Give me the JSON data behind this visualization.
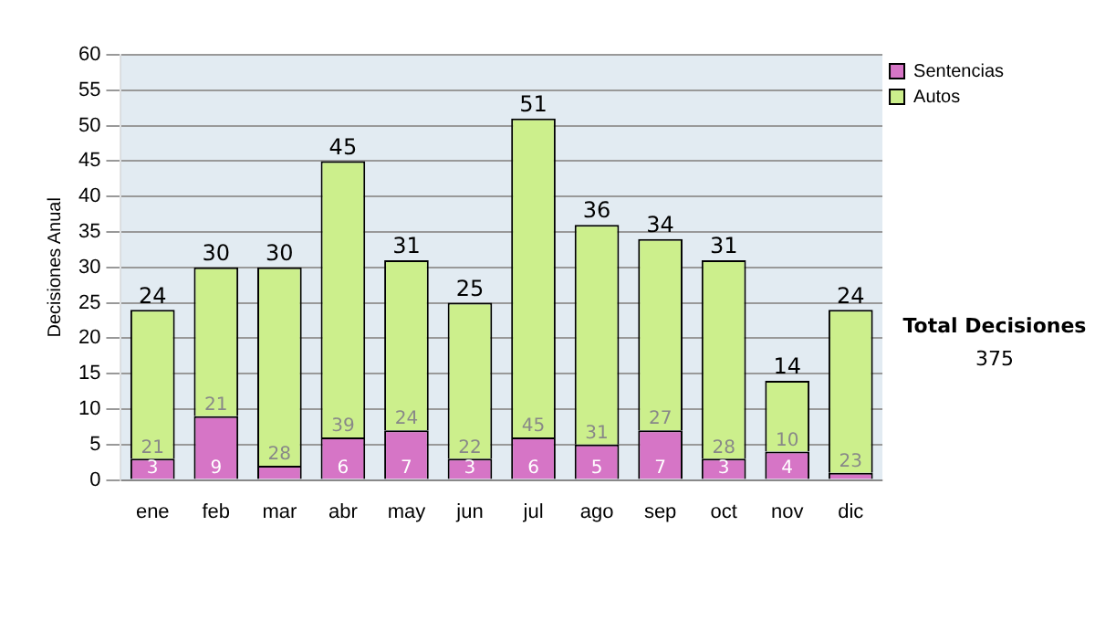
{
  "chart_data": {
    "type": "bar",
    "stacked": true,
    "ylabel": "Decisiones Anual",
    "categories": [
      "ene",
      "feb",
      "mar",
      "abr",
      "may",
      "jun",
      "jul",
      "ago",
      "sep",
      "oct",
      "nov",
      "dic"
    ],
    "series": [
      {
        "name": "Sentencias",
        "color": "#d675c6",
        "values": [
          3,
          9,
          2,
          6,
          7,
          3,
          6,
          5,
          7,
          3,
          4,
          1
        ],
        "value_labels": [
          "3",
          "9",
          null,
          "6",
          "7",
          "3",
          "6",
          "5",
          "7",
          "3",
          "4",
          null
        ]
      },
      {
        "name": "Autos",
        "color": "#ccef8c",
        "values": [
          21,
          21,
          28,
          39,
          24,
          22,
          45,
          31,
          27,
          28,
          10,
          23
        ],
        "value_labels": [
          "21",
          "21",
          "28",
          "39",
          "24",
          "22",
          "45",
          "31",
          "27",
          "28",
          "10",
          "23"
        ]
      }
    ],
    "totals": [
      "24",
      "30",
      "30",
      "45",
      "31",
      "25",
      "51",
      "36",
      "34",
      "31",
      "14",
      "24"
    ],
    "ylim": [
      0,
      60
    ],
    "yticks": [
      0,
      5,
      10,
      15,
      20,
      25,
      30,
      35,
      40,
      45,
      50,
      55,
      60
    ],
    "grid": "y",
    "legend": "right",
    "annotations": [
      "Total Decisiones",
      "375"
    ]
  }
}
